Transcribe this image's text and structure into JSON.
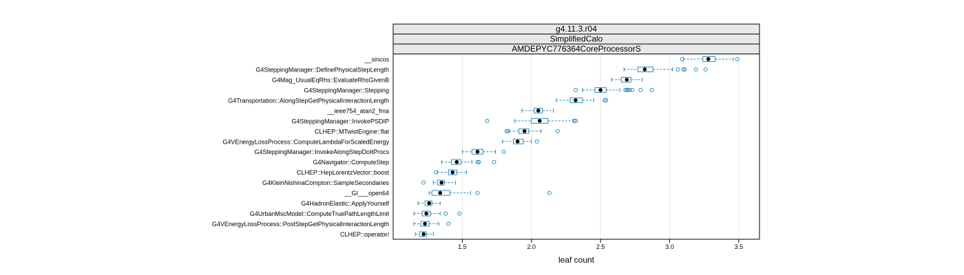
{
  "chart_data": {
    "type": "box",
    "strips": [
      "g4.11.3.r04",
      "SimplifiedCalo",
      "AMDEPYC776364CoreProcessorS"
    ],
    "xlabel": "leaf count",
    "xlim": [
      1.0,
      3.65
    ],
    "xticks": [
      1.5,
      2.0,
      2.5,
      3.0,
      3.5
    ],
    "xtick_labels": [
      "1.5",
      "2.0",
      "2.5",
      "3.0",
      "3.5"
    ],
    "grid": true,
    "colors": {
      "box": "#2b8cbe",
      "median": "#000000",
      "grid": "#e6e6e6",
      "strip": "#e8e8e8"
    },
    "categories": [
      {
        "label": "__sincos",
        "whisker_lo": 3.1,
        "q1": 3.24,
        "median": 3.28,
        "q3": 3.33,
        "whisker_hi": 3.46,
        "outliers": [
          3.09,
          3.49
        ]
      },
      {
        "label": "G4SteppingManager::DefinePhysicalStepLength",
        "whisker_lo": 2.67,
        "q1": 2.77,
        "median": 2.82,
        "q3": 2.88,
        "whisker_hi": 3.02,
        "outliers": [
          3.06,
          3.1,
          3.11,
          3.19,
          3.26
        ]
      },
      {
        "label": "G4Mag_UsualEqRhs::EvaluateRhsGivenB",
        "whisker_lo": 2.58,
        "q1": 2.65,
        "median": 2.69,
        "q3": 2.72,
        "whisker_hi": 2.8,
        "outliers": []
      },
      {
        "label": "G4SteppingManager::Stepping",
        "whisker_lo": 2.37,
        "q1": 2.46,
        "median": 2.5,
        "q3": 2.54,
        "whisker_hi": 2.64,
        "outliers": [
          2.32,
          2.68,
          2.69,
          2.7,
          2.71,
          2.73,
          2.79,
          2.87
        ]
      },
      {
        "label": "G4Transportation::AlongStepGetPhysicalInteractionLength",
        "whisker_lo": 2.18,
        "q1": 2.28,
        "median": 2.32,
        "q3": 2.37,
        "whisker_hi": 2.45,
        "outliers": [
          2.53,
          2.54
        ]
      },
      {
        "label": "__ieee754_atan2_fma",
        "whisker_lo": 1.93,
        "q1": 2.02,
        "median": 2.05,
        "q3": 2.08,
        "whisker_hi": 2.16,
        "outliers": []
      },
      {
        "label": "G4SteppingManager::InvokePSDIP",
        "whisker_lo": 1.88,
        "q1": 2.0,
        "median": 2.06,
        "q3": 2.12,
        "whisker_hi": 2.3,
        "outliers": [
          1.68,
          2.31,
          2.32
        ]
      },
      {
        "label": "CLHEP::MTwistEngine::flat",
        "whisker_lo": 1.84,
        "q1": 1.91,
        "median": 1.95,
        "q3": 1.98,
        "whisker_hi": 2.07,
        "outliers": [
          1.82,
          1.83,
          2.19
        ]
      },
      {
        "label": "G4VEnergyLossProcess::ComputeLambdaForScaledEnergy",
        "whisker_lo": 1.79,
        "q1": 1.87,
        "median": 1.9,
        "q3": 1.94,
        "whisker_hi": 2.0,
        "outliers": [
          2.04
        ]
      },
      {
        "label": "G4SteppingManager::InvokeAlongStepDoItProcs",
        "whisker_lo": 1.5,
        "q1": 1.57,
        "median": 1.61,
        "q3": 1.65,
        "whisker_hi": 1.74,
        "outliers": [
          1.8
        ]
      },
      {
        "label": "G4Navigator::ComputeStep",
        "whisker_lo": 1.35,
        "q1": 1.42,
        "median": 1.46,
        "q3": 1.49,
        "whisker_hi": 1.57,
        "outliers": [
          1.61,
          1.62,
          1.73
        ]
      },
      {
        "label": "CLHEP::HepLorentzVector::boost",
        "whisker_lo": 1.32,
        "q1": 1.4,
        "median": 1.43,
        "q3": 1.46,
        "whisker_hi": 1.53,
        "outliers": [
          1.31
        ]
      },
      {
        "label": "G4KleinNishinaCompton::SampleSecondaries",
        "whisker_lo": 1.29,
        "q1": 1.32,
        "median": 1.35,
        "q3": 1.37,
        "whisker_hi": 1.45,
        "outliers": [
          1.22
        ]
      },
      {
        "label": "__GI___open64",
        "whisker_lo": 1.26,
        "q1": 1.28,
        "median": 1.34,
        "q3": 1.41,
        "whisker_hi": 1.56,
        "outliers": [
          1.61,
          2.13
        ]
      },
      {
        "label": "G4HadronElastic::ApplyYourself",
        "whisker_lo": 1.18,
        "q1": 1.23,
        "median": 1.26,
        "q3": 1.28,
        "whisker_hi": 1.34,
        "outliers": []
      },
      {
        "label": "G4UrbanMscModel::ComputeTruePathLengthLimit",
        "whisker_lo": 1.15,
        "q1": 1.21,
        "median": 1.24,
        "q3": 1.27,
        "whisker_hi": 1.34,
        "outliers": [
          1.38,
          1.48
        ]
      },
      {
        "label": "G4VEnergyLossProcess::PostStepGetPhysicalInteractionLength",
        "whisker_lo": 1.15,
        "q1": 1.2,
        "median": 1.23,
        "q3": 1.26,
        "whisker_hi": 1.33,
        "outliers": [
          1.4
        ]
      },
      {
        "label": "CLHEP::operator/",
        "whisker_lo": 1.16,
        "q1": 1.19,
        "median": 1.22,
        "q3": 1.24,
        "whisker_hi": 1.29,
        "outliers": []
      }
    ]
  }
}
